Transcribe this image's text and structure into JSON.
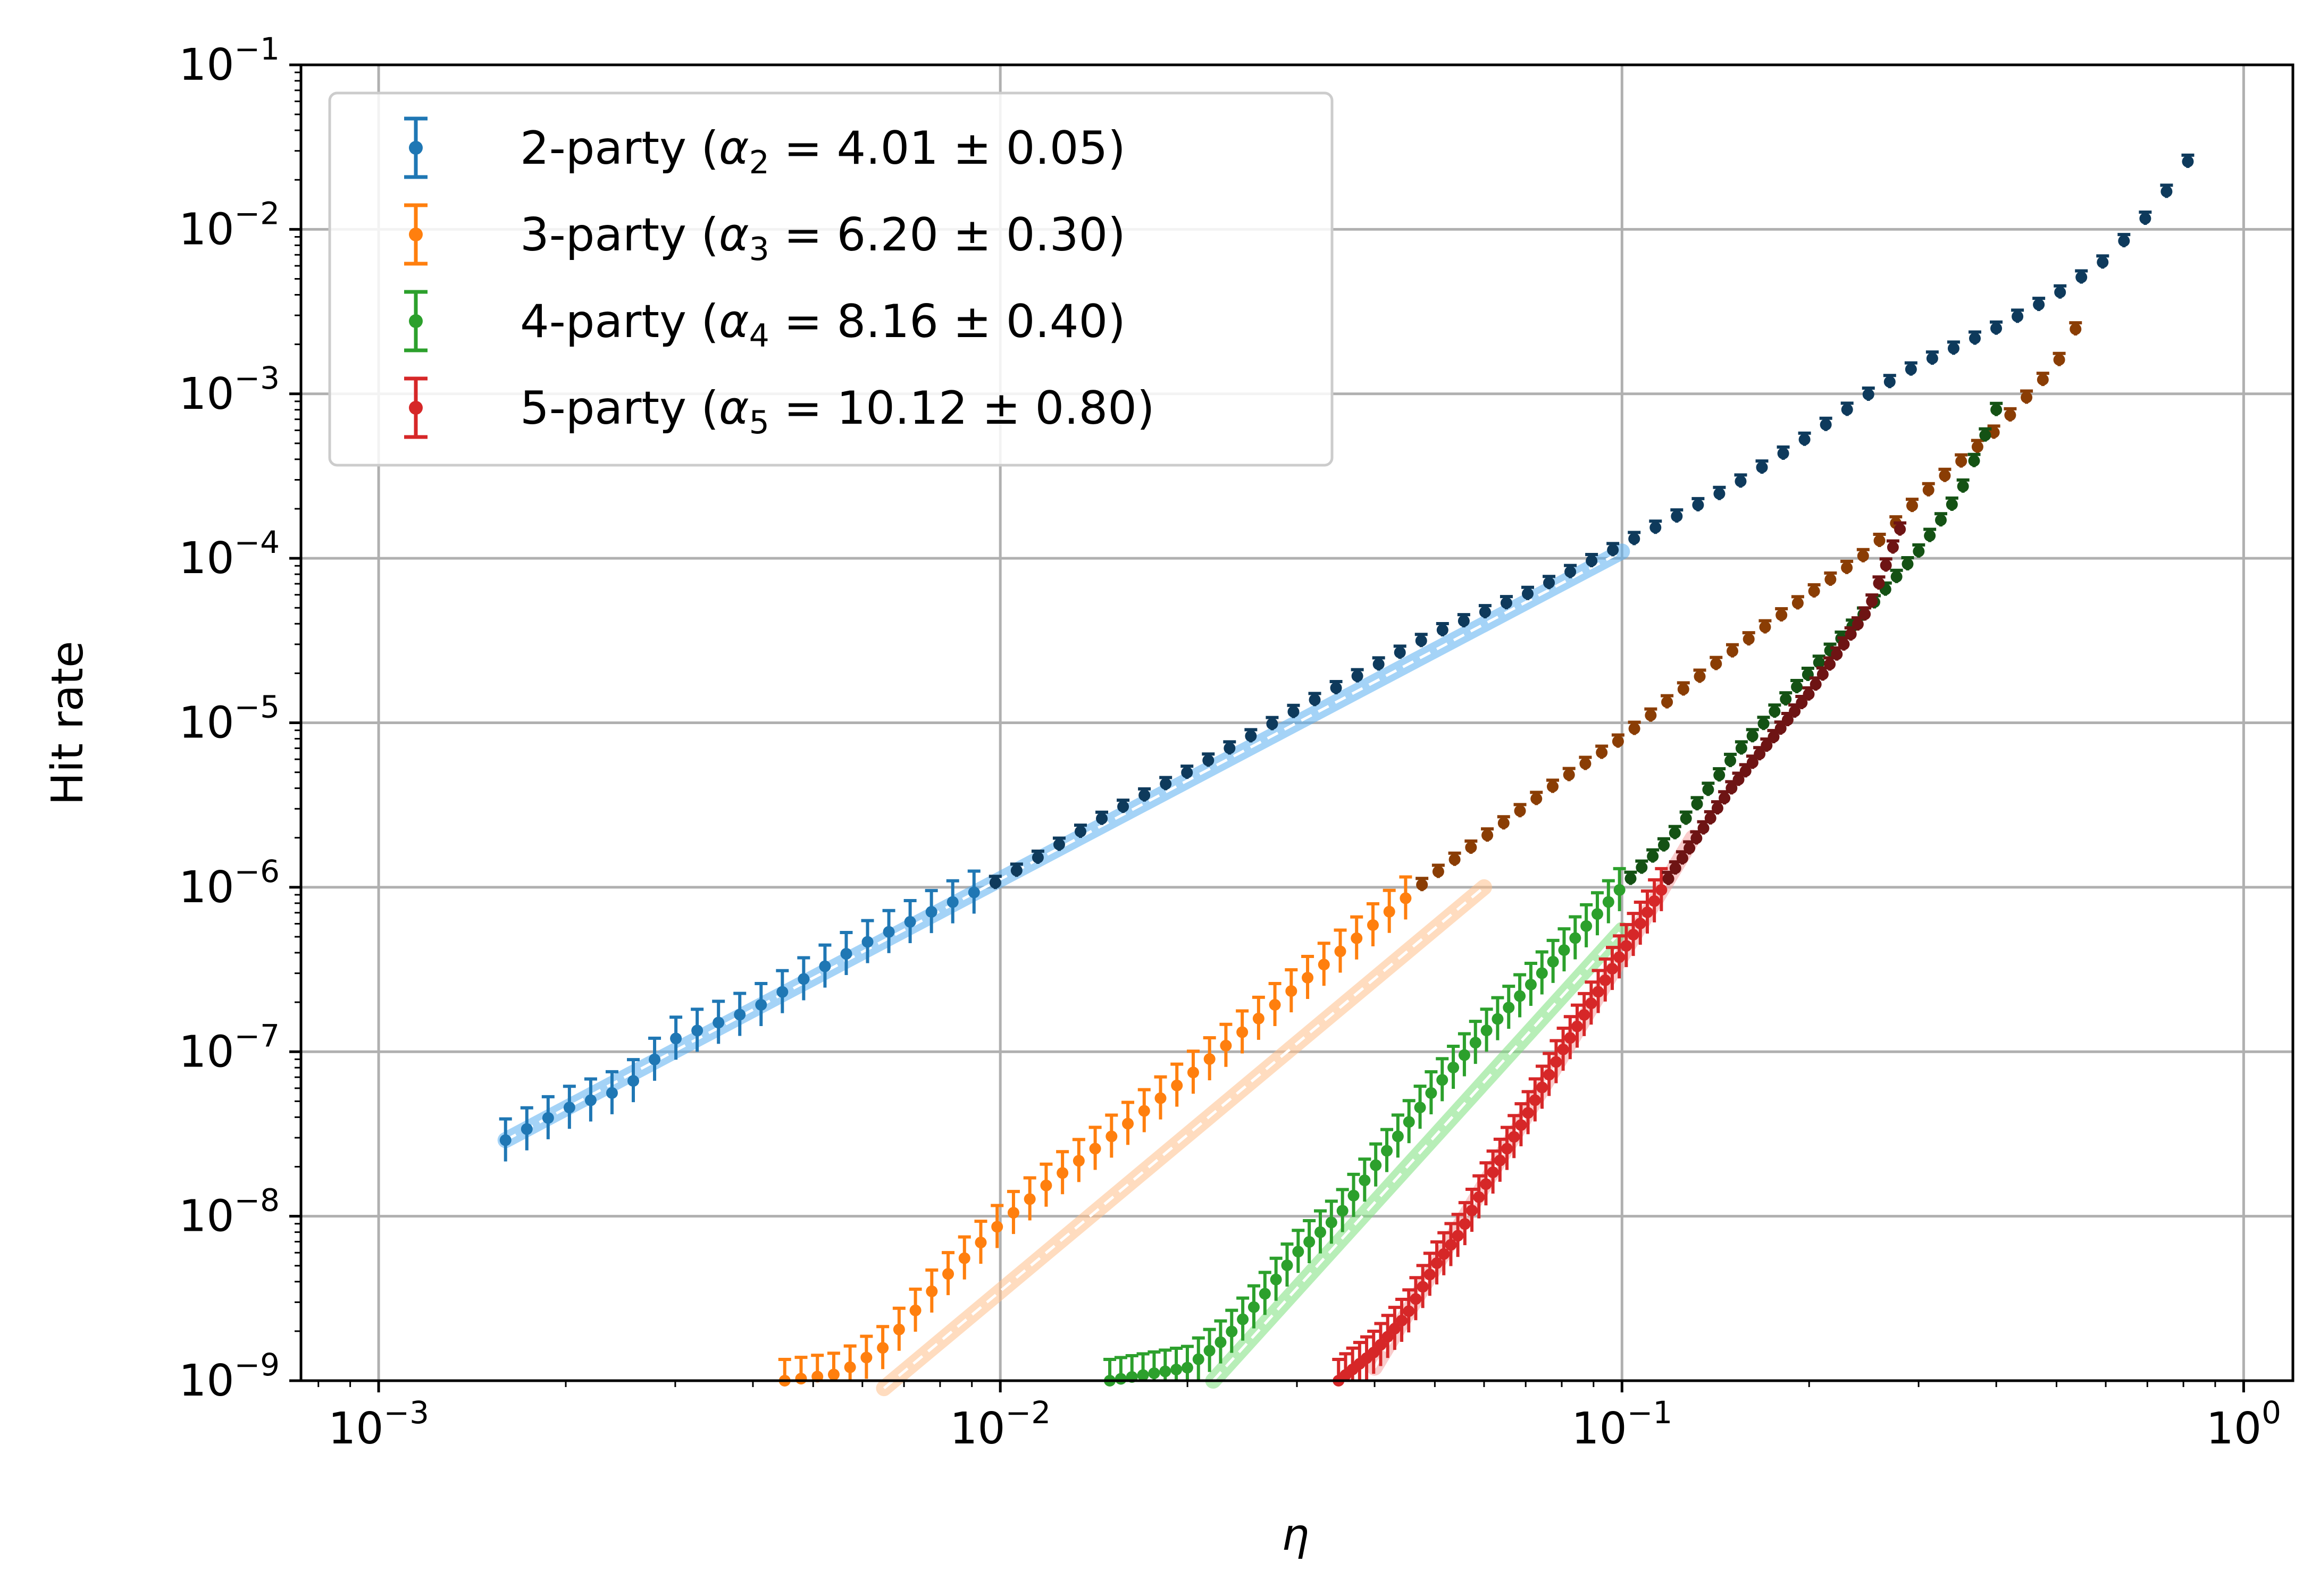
{
  "chart_data": {
    "type": "scatter",
    "title": "",
    "xlabel": "η",
    "ylabel": "Hit rate",
    "x_scale": "log",
    "y_scale": "log",
    "xlim": [
      0.00075,
      1.2
    ],
    "ylim": [
      1e-09,
      0.1
    ],
    "grid": true,
    "legend_position": "top-left",
    "x_ticks": [
      {
        "value": 0.001,
        "base": "10",
        "exp": "−3"
      },
      {
        "value": 0.01,
        "base": "10",
        "exp": "−2"
      },
      {
        "value": 0.1,
        "base": "10",
        "exp": "−1"
      },
      {
        "value": 1,
        "base": "10",
        "exp": "0"
      }
    ],
    "y_ticks": [
      {
        "value": 1e-09,
        "base": "10",
        "exp": "−9"
      },
      {
        "value": 1e-08,
        "base": "10",
        "exp": "−8"
      },
      {
        "value": 1e-07,
        "base": "10",
        "exp": "−7"
      },
      {
        "value": 1e-06,
        "base": "10",
        "exp": "−6"
      },
      {
        "value": 1e-05,
        "base": "10",
        "exp": "−5"
      },
      {
        "value": 0.0001,
        "base": "10",
        "exp": "−4"
      },
      {
        "value": 0.001,
        "base": "10",
        "exp": "−3"
      },
      {
        "value": 0.01,
        "base": "10",
        "exp": "−2"
      },
      {
        "value": 0.1,
        "base": "10",
        "exp": "−1"
      }
    ],
    "series": [
      {
        "name": "2-party",
        "alpha_symbol": "α",
        "alpha_subscript": "2",
        "alpha_value": "4.01 ± 0.05",
        "color": "#1f77b4",
        "dark_color": "#0e3a5c",
        "light_color": "#5aaef0",
        "x": [
          0.0016,
          0.002,
          0.0025,
          0.003,
          0.004,
          0.005,
          0.006,
          0.008,
          0.01,
          0.015,
          0.02,
          0.03,
          0.04,
          0.05,
          0.07,
          0.1,
          0.15,
          0.2,
          0.25,
          0.3,
          0.4,
          0.5,
          0.6,
          0.7,
          0.8,
          0.88
        ],
        "y": [
          2.9e-08,
          4.5e-08,
          6e-08,
          1.2e-07,
          1.8e-07,
          3e-07,
          4.5e-07,
          7.5e-07,
          1.1e-06,
          2.8e-06,
          5e-06,
          1.2e-05,
          2.2e-05,
          3.5e-05,
          6e-05,
          0.00012,
          0.00027,
          0.00055,
          0.001,
          0.0015,
          0.0025,
          0.004,
          0.0065,
          0.012,
          0.023,
          0.045
        ],
        "fit_x": [
          0.0016,
          0.1
        ],
        "fit_y": [
          2.9e-08,
          0.00011
        ]
      },
      {
        "name": "3-party",
        "alpha_symbol": "α",
        "alpha_subscript": "3",
        "alpha_value": "6.20 ± 0.30",
        "color": "#ff7f0e",
        "dark_color": "#8a3d04",
        "light_color": "#ffc08a",
        "x": [
          0.0045,
          0.0055,
          0.0065,
          0.008,
          0.01,
          0.012,
          0.015,
          0.02,
          0.025,
          0.03,
          0.04,
          0.05,
          0.06,
          0.08,
          0.1,
          0.12,
          0.15,
          0.2,
          0.25,
          0.3,
          0.4,
          0.5,
          0.57
        ],
        "y": [
          1e-09,
          1.1e-09,
          1.6e-09,
          4e-09,
          9e-09,
          1.6e-08,
          3e-08,
          7e-08,
          1.4e-07,
          2.5e-07,
          6e-07,
          1.2e-06,
          2e-06,
          4.5e-06,
          8e-06,
          1.4e-05,
          2.7e-05,
          6e-05,
          0.00011,
          0.00023,
          0.0006,
          0.0015,
          0.0038
        ],
        "fit_x": [
          0.0065,
          0.06
        ],
        "fit_y": [
          9e-10,
          1e-06
        ]
      },
      {
        "name": "4-party",
        "alpha_symbol": "α",
        "alpha_subscript": "4",
        "alpha_value": "8.16 ± 0.40",
        "color": "#2ca02c",
        "dark_color": "#145214",
        "light_color": "#7be07b",
        "x": [
          0.015,
          0.02,
          0.023,
          0.026,
          0.03,
          0.035,
          0.04,
          0.05,
          0.06,
          0.08,
          0.1,
          0.12,
          0.15,
          0.2,
          0.25,
          0.3,
          0.35,
          0.4
        ],
        "y": [
          1e-09,
          1.2e-09,
          1.8e-09,
          3e-09,
          6e-09,
          1e-08,
          2e-08,
          6e-08,
          1.3e-07,
          4e-07,
          1e-06,
          2e-06,
          6e-06,
          2e-05,
          5e-05,
          0.00011,
          0.00025,
          0.0008
        ],
        "fit_x": [
          0.022,
          0.1
        ],
        "fit_y": [
          1e-09,
          5.5e-07
        ]
      },
      {
        "name": "5-party",
        "alpha_symbol": "α",
        "alpha_subscript": "5",
        "alpha_value": "10.12 ± 0.80",
        "color": "#d62728",
        "dark_color": "#6e1414",
        "light_color": "#f4a0a0",
        "x": [
          0.035,
          0.04,
          0.045,
          0.05,
          0.055,
          0.06,
          0.07,
          0.08,
          0.1,
          0.12,
          0.15,
          0.2,
          0.25,
          0.28
        ],
        "y": [
          1e-09,
          1.5e-09,
          2.5e-09,
          5e-09,
          8e-09,
          1.5e-08,
          4e-08,
          1e-07,
          4e-07,
          1.2e-06,
          4e-06,
          1.5e-05,
          5e-05,
          0.00015
        ],
        "fit_x": [
          0.04,
          0.13
        ],
        "fit_y": [
          1.2e-09,
          2e-06
        ]
      }
    ]
  }
}
